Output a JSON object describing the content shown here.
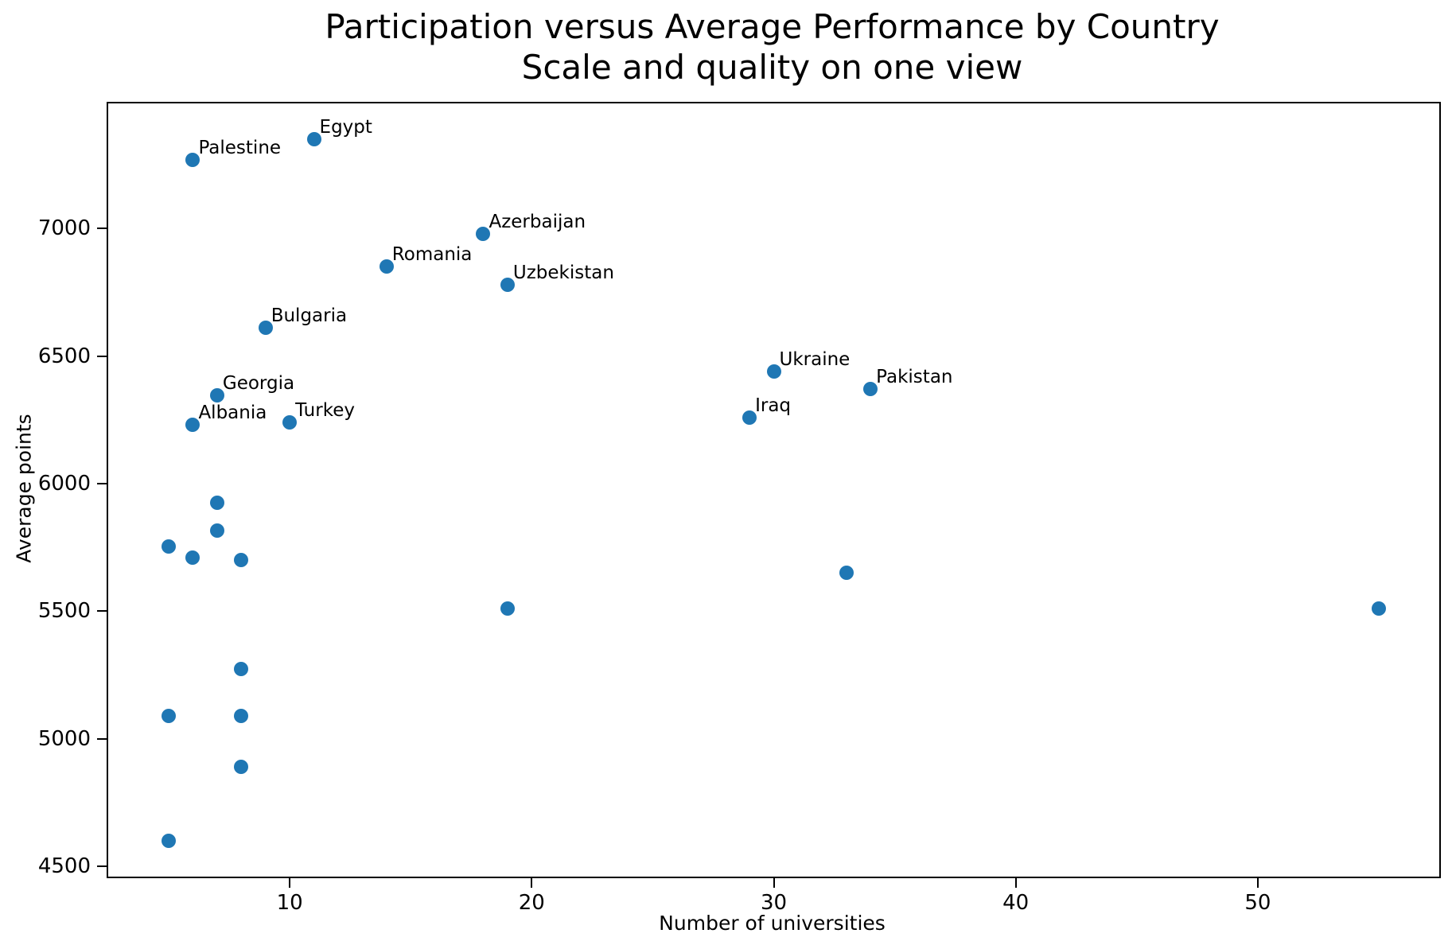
{
  "title": {
    "line1": "Participation versus Average Performance by Country",
    "line2": "Scale and quality on one view"
  },
  "chart_data": {
    "type": "scatter",
    "title": "Participation versus Average Performance by Country",
    "subtitle": "Scale and quality on one view",
    "xlabel": "Number of universities",
    "ylabel": "Average points",
    "xlim": [
      2.5,
      57.5
    ],
    "ylim": [
      4460,
      7490
    ],
    "x_ticks": [
      10,
      20,
      30,
      40,
      50
    ],
    "y_ticks": [
      4500,
      5000,
      5500,
      6000,
      6500,
      7000
    ],
    "grid": false,
    "legend": "none",
    "marker_color": "#1f77b4",
    "points": [
      {
        "label": "Egypt",
        "x": 11,
        "y": 7350
      },
      {
        "label": "Palestine",
        "x": 6,
        "y": 7270
      },
      {
        "label": "Azerbaijan",
        "x": 18,
        "y": 6980
      },
      {
        "label": "Romania",
        "x": 14,
        "y": 6850
      },
      {
        "label": "Uzbekistan",
        "x": 19,
        "y": 6780
      },
      {
        "label": "Bulgaria",
        "x": 9,
        "y": 6610
      },
      {
        "label": "Ukraine",
        "x": 30,
        "y": 6440
      },
      {
        "label": "Pakistan",
        "x": 34,
        "y": 6370
      },
      {
        "label": "Georgia",
        "x": 7,
        "y": 6345
      },
      {
        "label": "Iraq",
        "x": 29,
        "y": 6260
      },
      {
        "label": "Turkey",
        "x": 10,
        "y": 6240
      },
      {
        "label": "Albania",
        "x": 6,
        "y": 6230
      },
      {
        "label": "",
        "x": 7,
        "y": 5925
      },
      {
        "label": "",
        "x": 7,
        "y": 5815
      },
      {
        "label": "",
        "x": 5,
        "y": 5755
      },
      {
        "label": "",
        "x": 6,
        "y": 5710
      },
      {
        "label": "",
        "x": 8,
        "y": 5700
      },
      {
        "label": "",
        "x": 33,
        "y": 5650
      },
      {
        "label": "",
        "x": 19,
        "y": 5510
      },
      {
        "label": "",
        "x": 55,
        "y": 5510
      },
      {
        "label": "",
        "x": 8,
        "y": 5275
      },
      {
        "label": "",
        "x": 5,
        "y": 5090
      },
      {
        "label": "",
        "x": 8,
        "y": 5090
      },
      {
        "label": "",
        "x": 8,
        "y": 4890
      },
      {
        "label": "",
        "x": 5,
        "y": 4600
      }
    ]
  }
}
